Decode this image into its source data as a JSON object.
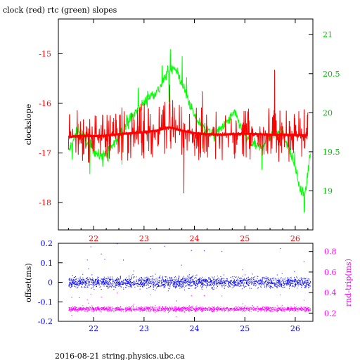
{
  "title": "clock (red) rtc (green) slopes",
  "footer": "2016-08-21 string.physics.ubc.ca",
  "colors": {
    "red": "#ff0000",
    "green": "#00ff00",
    "blue": "#0000ff",
    "magenta": "#ff00ff",
    "axis": "#000000"
  },
  "chart_data": [
    {
      "type": "line",
      "title": "clock (red) rtc (green) slopes",
      "xlim": [
        21.3,
        26.35
      ],
      "x_ticks": [
        22,
        23,
        24,
        25,
        26
      ],
      "ylabel": "clockslope",
      "ylim": [
        -18.55,
        -14.3
      ],
      "y_ticks": [
        -18,
        -17,
        -16,
        -15
      ],
      "y2lim": [
        18.5,
        21.2
      ],
      "y2_ticks": [
        19,
        19.5,
        20,
        20.5,
        21
      ],
      "series": [
        {
          "axis": "left",
          "color": "red",
          "x": [
            21.5,
            21.75,
            22.0,
            22.25,
            22.5,
            22.75,
            23.0,
            23.25,
            23.5,
            23.75,
            24.0,
            24.25,
            24.5,
            24.75,
            25.0,
            25.25,
            25.5,
            25.75,
            26.0,
            26.25
          ],
          "y": [
            -16.68,
            -16.65,
            -16.66,
            -16.65,
            -16.62,
            -16.6,
            -16.58,
            -16.55,
            -16.48,
            -16.55,
            -16.6,
            -16.62,
            -16.63,
            -16.62,
            -16.61,
            -16.62,
            -16.63,
            -16.63,
            -16.64,
            -16.64
          ]
        },
        {
          "axis": "right",
          "color": "green",
          "x": [
            21.5,
            21.7,
            21.9,
            22.1,
            22.3,
            22.5,
            22.7,
            22.9,
            23.1,
            23.3,
            23.45,
            23.6,
            23.8,
            24.0,
            24.2,
            24.4,
            24.6,
            24.8,
            25.0,
            25.15,
            25.3,
            25.5,
            25.7,
            25.85,
            26.0,
            26.1,
            26.2,
            26.3
          ],
          "y": [
            19.5,
            19.8,
            19.6,
            19.45,
            19.5,
            19.7,
            19.9,
            20.05,
            20.2,
            20.3,
            20.5,
            20.6,
            20.3,
            19.95,
            19.8,
            19.7,
            19.85,
            20.0,
            19.7,
            19.6,
            19.55,
            19.7,
            19.8,
            19.6,
            19.3,
            19.0,
            18.95,
            19.5
          ]
        }
      ]
    },
    {
      "type": "scatter",
      "xlim": [
        21.3,
        26.35
      ],
      "x_ticks": [
        22,
        23,
        24,
        25,
        26
      ],
      "ylabel": "offset(ms)",
      "ylim": [
        -0.2,
        0.2
      ],
      "y_ticks": [
        -0.2,
        -0.1,
        0,
        0.1,
        0.2
      ],
      "y2label": "rnd-trip(ms)",
      "y2lim": [
        0.12,
        0.88
      ],
      "y2_ticks": [
        0.2,
        0.4,
        0.6,
        0.8
      ],
      "series": [
        {
          "axis": "left",
          "color": "blue",
          "x": [
            21.5,
            26.3
          ],
          "y": [
            0.0,
            0.0
          ],
          "spread": 0.05
        },
        {
          "axis": "right",
          "color": "magenta",
          "x": [
            21.5,
            26.3
          ],
          "y": [
            0.24,
            0.24
          ],
          "spread": 0.04
        }
      ]
    }
  ]
}
